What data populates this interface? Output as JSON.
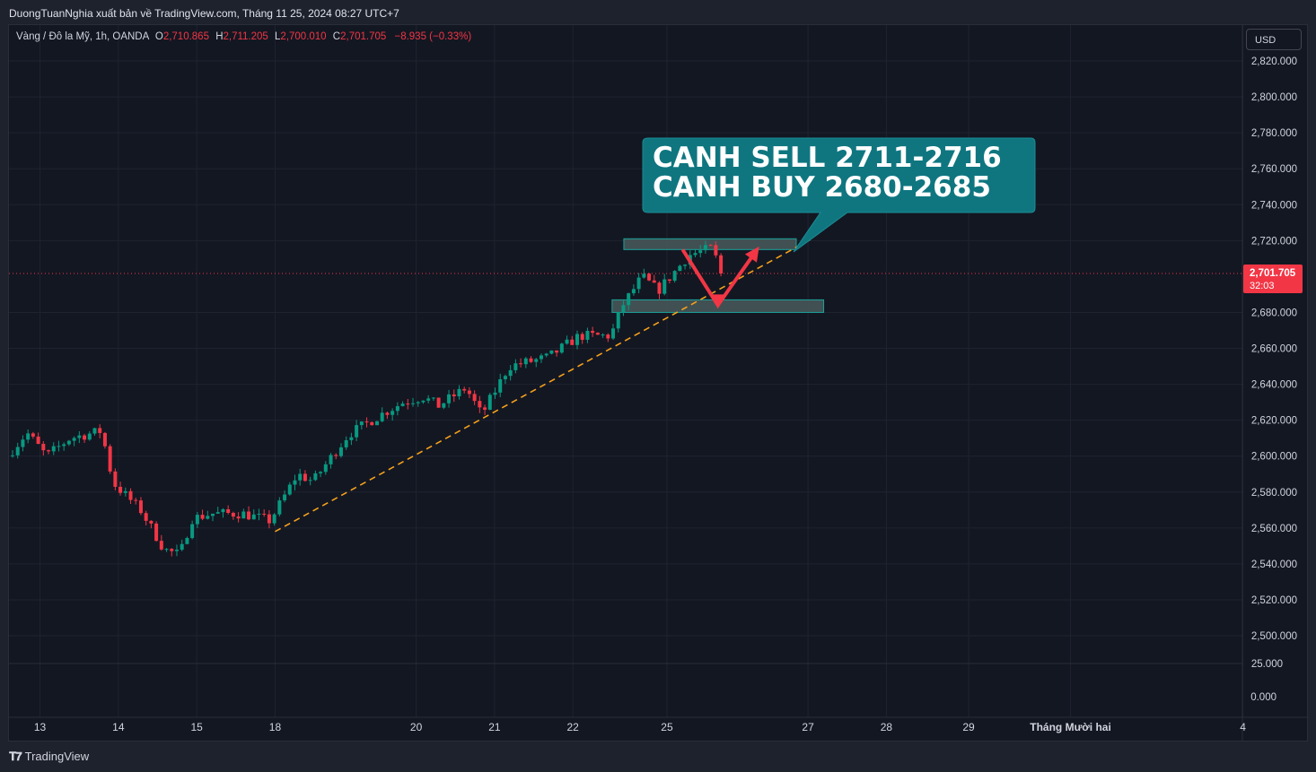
{
  "header": {
    "publish_line": "DuongTuanNghia xuất bản về TradingView.com, Tháng 11 25, 2024 08:27 UTC+7"
  },
  "legend": {
    "symbol": "Vàng / Đô la Mỹ, 1h, OANDA",
    "o_label": "O",
    "o_value": "2,710.865",
    "h_label": "H",
    "h_value": "2,711.205",
    "l_label": "L",
    "l_value": "2,700.010",
    "c_label": "C",
    "c_value": "2,701.705",
    "change": "−8.935 (−0.33%)"
  },
  "currency_button": "USD",
  "price_tag": {
    "price": "2,701.705",
    "countdown": "32:03"
  },
  "annotation": {
    "line1": "CANH SELL 2711-2716",
    "line2": "CANH BUY 2680-2685"
  },
  "branding": {
    "logo_text": "TradingView"
  },
  "colors": {
    "up": "#089981",
    "down": "#f23645",
    "trendline": "#f7a21b",
    "callout": "#0f7680",
    "zone": "#4a5a5c"
  },
  "chart_data": {
    "type": "candlestick",
    "y_axis": {
      "ticks": [
        {
          "v": 2820,
          "label": "2,820.000"
        },
        {
          "v": 2800,
          "label": "2,800.000"
        },
        {
          "v": 2780,
          "label": "2,780.000"
        },
        {
          "v": 2760,
          "label": "2,760.000"
        },
        {
          "v": 2740,
          "label": "2,740.000"
        },
        {
          "v": 2720,
          "label": "2,720.000"
        },
        {
          "v": 2680,
          "label": "2,680.000"
        },
        {
          "v": 2660,
          "label": "2,660.000"
        },
        {
          "v": 2640,
          "label": "2,640.000"
        },
        {
          "v": 2620,
          "label": "2,620.000"
        },
        {
          "v": 2600,
          "label": "2,600.000"
        },
        {
          "v": 2580,
          "label": "2,580.000"
        },
        {
          "v": 2560,
          "label": "2,560.000"
        },
        {
          "v": 2540,
          "label": "2,540.000"
        },
        {
          "v": 2520,
          "label": "2,520.000"
        },
        {
          "v": 2500,
          "label": "2,500.000"
        }
      ],
      "volume_ticks": [
        "25.000",
        "0.000"
      ]
    },
    "x_axis": {
      "ticks": [
        {
          "t": 0.35,
          "label": "13"
        },
        {
          "t": 1.35,
          "label": "14"
        },
        {
          "t": 2.35,
          "label": "15"
        },
        {
          "t": 3.35,
          "label": "18"
        },
        {
          "t": 5.15,
          "label": "20"
        },
        {
          "t": 6.15,
          "label": "21"
        },
        {
          "t": 7.15,
          "label": "22"
        },
        {
          "t": 8.35,
          "label": "25"
        },
        {
          "t": 10.15,
          "label": "27"
        },
        {
          "t": 11.15,
          "label": "28"
        },
        {
          "t": 12.2,
          "label": "29"
        },
        {
          "t": 13.5,
          "label": "Tháng Mười hai"
        },
        {
          "t": 15.7,
          "label": "4"
        }
      ]
    },
    "key_points": [
      {
        "t": 0.0,
        "price": 2600
      },
      {
        "t": 0.25,
        "price": 2613
      },
      {
        "t": 0.5,
        "price": 2600
      },
      {
        "t": 0.8,
        "price": 2610
      },
      {
        "t": 1.2,
        "price": 2614
      },
      {
        "t": 1.35,
        "price": 2585
      },
      {
        "t": 1.7,
        "price": 2570
      },
      {
        "t": 2.0,
        "price": 2548
      },
      {
        "t": 2.2,
        "price": 2545
      },
      {
        "t": 2.35,
        "price": 2565
      },
      {
        "t": 2.6,
        "price": 2568
      },
      {
        "t": 3.0,
        "price": 2568
      },
      {
        "t": 3.35,
        "price": 2564
      },
      {
        "t": 3.7,
        "price": 2590
      },
      {
        "t": 3.9,
        "price": 2586
      },
      {
        "t": 4.35,
        "price": 2612
      },
      {
        "t": 4.8,
        "price": 2624
      },
      {
        "t": 5.05,
        "price": 2630
      },
      {
        "t": 5.3,
        "price": 2633
      },
      {
        "t": 5.5,
        "price": 2628
      },
      {
        "t": 5.85,
        "price": 2638
      },
      {
        "t": 6.05,
        "price": 2623
      },
      {
        "t": 6.4,
        "price": 2650
      },
      {
        "t": 6.9,
        "price": 2655
      },
      {
        "t": 7.3,
        "price": 2667
      },
      {
        "t": 7.7,
        "price": 2667
      },
      {
        "t": 7.85,
        "price": 2684
      },
      {
        "t": 8.1,
        "price": 2700
      },
      {
        "t": 8.3,
        "price": 2692
      },
      {
        "t": 8.7,
        "price": 2712
      },
      {
        "t": 9.0,
        "price": 2716
      },
      {
        "t": 9.1,
        "price": 2701.7
      }
    ],
    "trendline": {
      "from": {
        "t": 3.35,
        "price": 2558
      },
      "to": {
        "t": 10.2,
        "price": 2721
      }
    },
    "zones": [
      {
        "name": "sell-zone",
        "t0": 7.8,
        "t1": 10.0,
        "price_low": 2715,
        "price_high": 2721
      },
      {
        "name": "buy-zone",
        "t0": 7.65,
        "t1": 10.35,
        "price_low": 2680,
        "price_high": 2687
      }
    ],
    "projection_arrow": [
      {
        "t": 8.55,
        "price": 2715
      },
      {
        "t": 9.0,
        "price": 2684
      },
      {
        "t": 9.5,
        "price": 2715
      }
    ],
    "current_price": 2701.705
  }
}
